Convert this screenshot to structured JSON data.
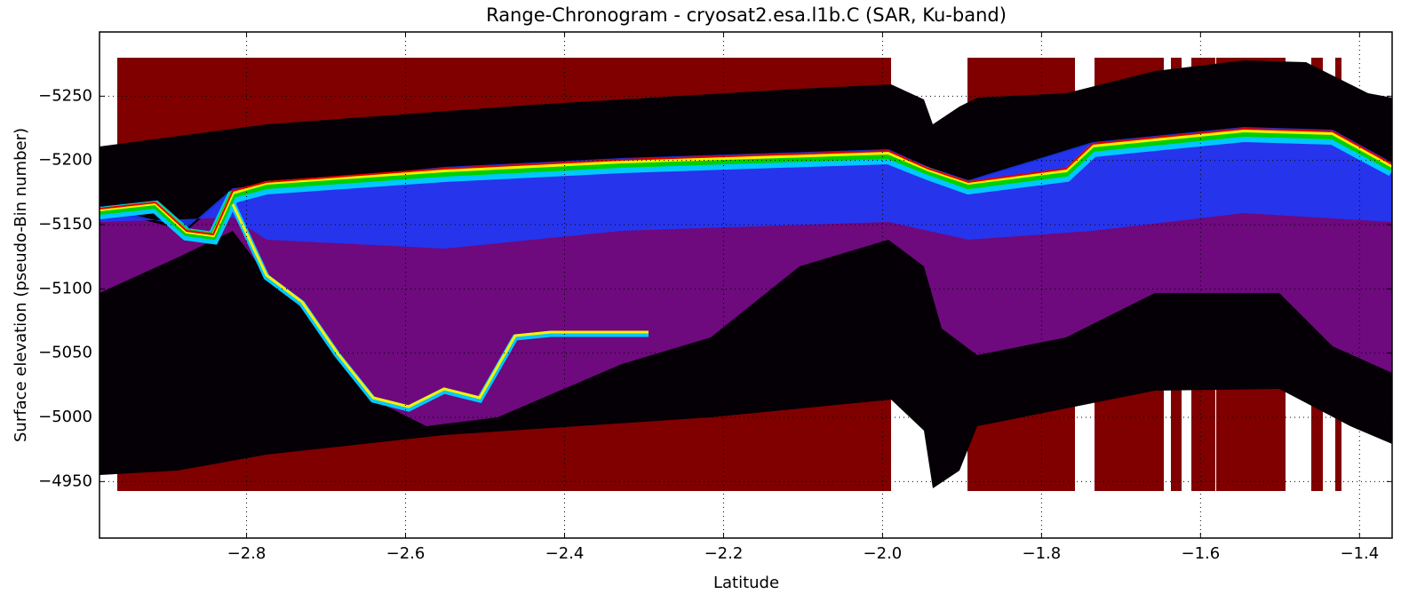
{
  "chart_data": {
    "type": "heatmap",
    "title": "Range-Chronogram - cryosat2.esa.l1b.C (SAR, Ku-band)",
    "x_label": "Latitude",
    "y_label": "Surface elevation (pseudo-Bin number)",
    "xlim": [
      -2.985,
      -1.359
    ],
    "ylim": [
      -5300,
      -4906
    ],
    "y_inverted": true,
    "grid": true,
    "xticks": [
      {
        "value": -2.8,
        "label": "−2.8"
      },
      {
        "value": -2.6,
        "label": "−2.6"
      },
      {
        "value": -2.4,
        "label": "−2.4"
      },
      {
        "value": -2.2,
        "label": "−2.2"
      },
      {
        "value": -2.0,
        "label": "−2.0"
      },
      {
        "value": -1.8,
        "label": "−1.8"
      },
      {
        "value": -1.6,
        "label": "−1.6"
      },
      {
        "value": -1.4,
        "label": "−1.4"
      }
    ],
    "yticks": [
      {
        "value": -5250,
        "label": "−5250"
      },
      {
        "value": -5200,
        "label": "−5200"
      },
      {
        "value": -5150,
        "label": "−5150"
      },
      {
        "value": -5100,
        "label": "−5100"
      },
      {
        "value": -5050,
        "label": "−5050"
      },
      {
        "value": -5000,
        "label": "−5000"
      },
      {
        "value": -4950,
        "label": "−4950"
      }
    ]
  }
}
